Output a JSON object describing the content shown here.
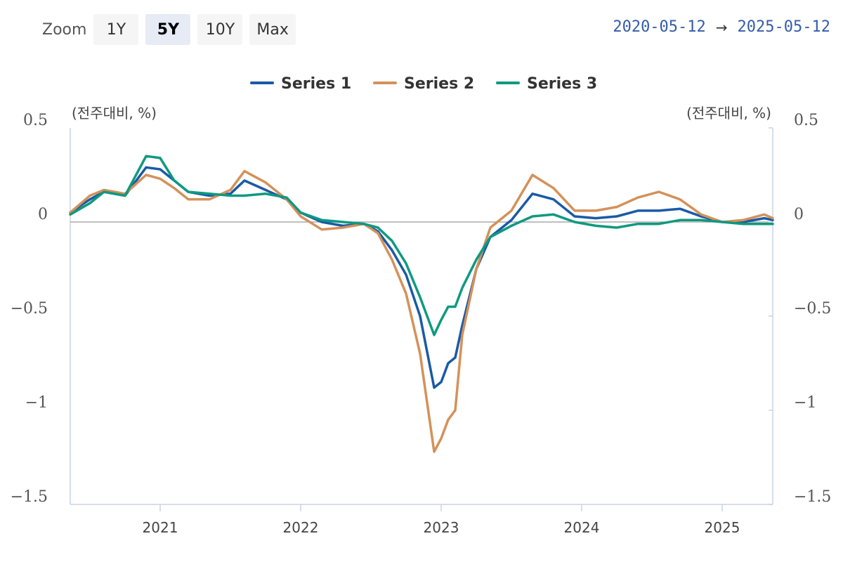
{
  "toolbar": {
    "zoom_label": "Zoom",
    "buttons": [
      "1Y",
      "5Y",
      "10Y",
      "Max"
    ],
    "active": "5Y"
  },
  "range": {
    "from": "2020-05-12",
    "arrow": "→",
    "to": "2025-05-12"
  },
  "colors": {
    "series1": "#1a5aa6",
    "series2": "#d4915a",
    "series3": "#0f9980",
    "range_text": "#335cad",
    "active_button": "#e6ebf5"
  },
  "chart_data": {
    "type": "line",
    "title": "",
    "unit_left": "(전주대비, %)",
    "unit_right": "(전주대비, %)",
    "ylim": [
      -1.5,
      0.5
    ],
    "yticks": [
      0.5,
      0,
      -0.5,
      -1,
      -1.5
    ],
    "ytick_labels": [
      "0.5",
      "0",
      "−0.5",
      "−1",
      "−1.5"
    ],
    "xlim": [
      2020.36,
      2025.36
    ],
    "xticks": [
      2021,
      2022,
      2023,
      2024,
      2025
    ],
    "xtick_labels": [
      "2021",
      "2022",
      "2023",
      "2024",
      "2025"
    ],
    "legend_position": "top-center",
    "x": [
      2020.36,
      2020.5,
      2020.6,
      2020.75,
      2020.9,
      2021.0,
      2021.1,
      2021.2,
      2021.35,
      2021.5,
      2021.6,
      2021.75,
      2021.9,
      2022.0,
      2022.15,
      2022.3,
      2022.45,
      2022.55,
      2022.65,
      2022.75,
      2022.85,
      2022.95,
      2023.0,
      2023.05,
      2023.1,
      2023.15,
      2023.25,
      2023.35,
      2023.5,
      2023.65,
      2023.8,
      2023.95,
      2024.1,
      2024.25,
      2024.4,
      2024.55,
      2024.7,
      2024.85,
      2025.0,
      2025.15,
      2025.3,
      2025.36
    ],
    "series": [
      {
        "name": "Series 1",
        "values": [
          0.05,
          0.12,
          0.16,
          0.14,
          0.29,
          0.28,
          0.22,
          0.16,
          0.14,
          0.15,
          0.22,
          0.17,
          0.12,
          0.05,
          0.0,
          -0.02,
          -0.01,
          -0.05,
          -0.15,
          -0.28,
          -0.5,
          -0.88,
          -0.85,
          -0.75,
          -0.72,
          -0.55,
          -0.25,
          -0.08,
          0.01,
          0.15,
          0.12,
          0.03,
          0.02,
          0.03,
          0.06,
          0.06,
          0.07,
          0.03,
          0.0,
          0.0,
          0.02,
          0.01
        ]
      },
      {
        "name": "Series 2",
        "values": [
          0.05,
          0.14,
          0.17,
          0.15,
          0.25,
          0.23,
          0.18,
          0.12,
          0.12,
          0.17,
          0.27,
          0.21,
          0.12,
          0.03,
          -0.04,
          -0.03,
          -0.01,
          -0.06,
          -0.2,
          -0.38,
          -0.7,
          -1.22,
          -1.15,
          -1.05,
          -1.0,
          -0.6,
          -0.25,
          -0.03,
          0.06,
          0.25,
          0.18,
          0.06,
          0.06,
          0.08,
          0.13,
          0.16,
          0.12,
          0.04,
          0.0,
          0.01,
          0.04,
          0.02
        ]
      },
      {
        "name": "Series 3",
        "values": [
          0.04,
          0.1,
          0.16,
          0.14,
          0.35,
          0.34,
          0.22,
          0.16,
          0.15,
          0.14,
          0.14,
          0.15,
          0.13,
          0.05,
          0.01,
          0.0,
          -0.01,
          -0.03,
          -0.1,
          -0.22,
          -0.4,
          -0.6,
          -0.52,
          -0.45,
          -0.45,
          -0.35,
          -0.2,
          -0.08,
          -0.02,
          0.03,
          0.04,
          0.0,
          -0.02,
          -0.03,
          -0.01,
          -0.01,
          0.01,
          0.01,
          0.0,
          -0.01,
          -0.01,
          -0.01
        ]
      }
    ]
  }
}
